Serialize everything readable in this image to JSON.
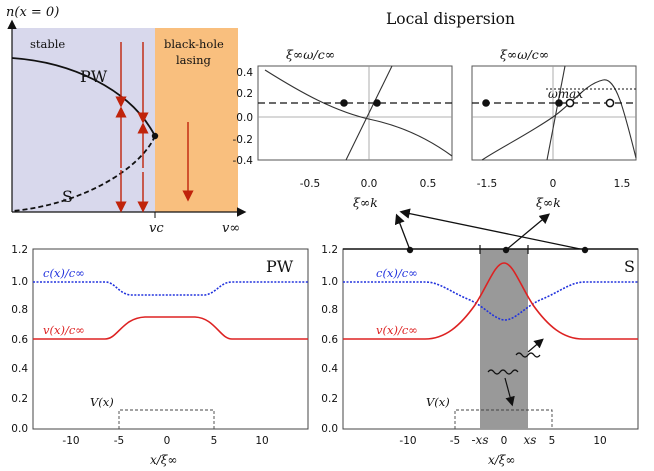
{
  "phase": {
    "ylabel": "n(x = 0)",
    "xlabel": "v∞",
    "vc_label": "vc",
    "stable_label": "stable",
    "bh_label_1": "black-hole",
    "bh_label_2": "lasing",
    "pw_label": "PW",
    "s_label": "S",
    "colors": {
      "stable": "#d8d8ec",
      "bh": "#f9bf7e",
      "arrow": "#c0230b"
    }
  },
  "dispersion": {
    "title": "Local dispersion",
    "left": {
      "top_label": "ξ∞ω/c∞",
      "bottom_label": "ξ∞k",
      "yticks": [
        "0.4",
        "0.2",
        "0.0",
        "-0.2",
        "-0.4"
      ],
      "xticks": [
        "-0.5",
        "0.0",
        "0.5"
      ]
    },
    "right": {
      "top_label": "ξ∞ω/c∞",
      "bottom_label": "ξ∞k",
      "omega_max": "ωmax",
      "xticks": [
        "-1.5",
        "0",
        "1.5"
      ]
    }
  },
  "profiles": {
    "left": {
      "corner_label": "PW",
      "c_label": "c(x)/c∞",
      "v_label": "v(x)/c∞",
      "V_label": "V(x)",
      "xlabel": "x/ξ∞",
      "yticks": [
        "1.2",
        "1.0",
        "0.8",
        "0.6",
        "0.4",
        "0.2",
        "0.0"
      ],
      "xticks": [
        "-10",
        "-5",
        "0",
        "5",
        "10"
      ]
    },
    "right": {
      "corner_label": "S",
      "c_label": "c(x)/c∞",
      "v_label": "v(x)/c∞",
      "V_label": "V(x)",
      "xlabel": "x/ξ∞",
      "yticks": [
        "1.2",
        "1.0",
        "0.8",
        "0.6",
        "0.4",
        "0.2",
        "0.0"
      ],
      "xticks": [
        "-10",
        "-5",
        "-xs",
        "0",
        "xs",
        "5",
        "10"
      ]
    },
    "colors": {
      "c": "#2233dd",
      "v": "#dd2222",
      "band": "#999999"
    }
  }
}
